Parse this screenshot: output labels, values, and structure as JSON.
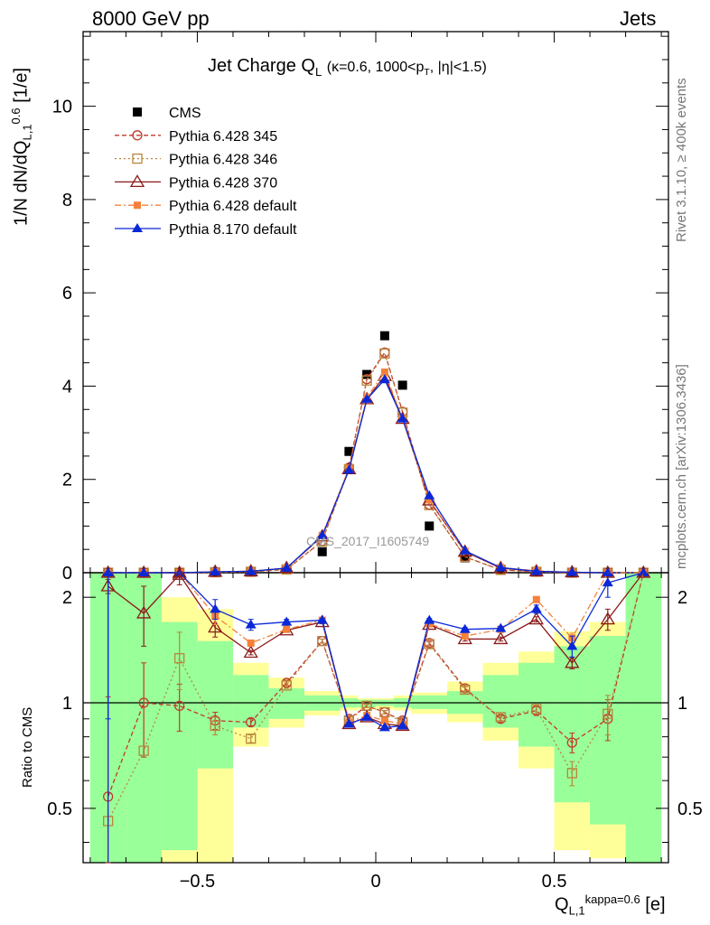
{
  "header": {
    "left": "8000 GeV pp",
    "right": "Jets"
  },
  "side_labels": {
    "rivet": "Rivet 3.1.10, ≥ 400k events",
    "mcplots": "mcplots.cern.ch [arXiv:1306.3436]"
  },
  "watermark": "CMS_2017_I1605749",
  "chart_data": [
    {
      "type": "line",
      "title": "Jet Charge Q_L (κ=0.6, 1000<p_T, |η|<1.5)",
      "ylabel": "1/N dN/dQ_{L,1}^{0.6} [1/e]",
      "xlim": [
        -0.82,
        0.82
      ],
      "ylim": [
        0,
        11.6
      ],
      "y_ticks": [
        0,
        2,
        4,
        6,
        8,
        10
      ],
      "legend_position": "top-left",
      "x": [
        -0.75,
        -0.65,
        -0.55,
        -0.45,
        -0.35,
        -0.25,
        -0.15,
        -0.075,
        -0.025,
        0.025,
        0.075,
        0.15,
        0.25,
        0.35,
        0.45,
        0.55,
        0.65,
        0.75
      ],
      "series": [
        {
          "name": "CMS",
          "color": "#000000",
          "values": [
            0.0,
            0.0,
            0.0,
            0.01,
            0.02,
            0.06,
            0.45,
            2.6,
            4.25,
            5.08,
            4.02,
            1.0,
            0.32,
            0.07,
            0.02,
            0.01,
            0.0,
            0.0
          ]
        },
        {
          "name": "Pythia 6.428 345",
          "color": "#c0392b",
          "values": [
            0.0,
            0.0,
            0.0,
            0.01,
            0.02,
            0.07,
            0.68,
            2.25,
            4.15,
            4.72,
            3.45,
            1.46,
            0.34,
            0.06,
            0.02,
            0.0,
            0.0,
            0.0
          ]
        },
        {
          "name": "Pythia 6.428 346",
          "color": "#b8863b",
          "values": [
            0.0,
            0.0,
            0.0,
            0.01,
            0.02,
            0.07,
            0.67,
            2.22,
            4.12,
            4.7,
            3.43,
            1.45,
            0.34,
            0.06,
            0.02,
            0.0,
            0.0,
            0.0
          ]
        },
        {
          "name": "Pythia 6.428 370",
          "color": "#8b1a1a",
          "values": [
            0.0,
            0.0,
            0.0,
            0.02,
            0.03,
            0.1,
            0.78,
            2.22,
            3.72,
            4.22,
            3.3,
            1.55,
            0.45,
            0.1,
            0.03,
            0.01,
            0.0,
            0.0
          ]
        },
        {
          "name": "Pythia 6.428 default",
          "color": "#f5813b",
          "values": [
            0.0,
            0.0,
            0.0,
            0.02,
            0.03,
            0.1,
            0.8,
            2.24,
            3.76,
            4.3,
            3.3,
            1.56,
            0.46,
            0.11,
            0.04,
            0.01,
            0.0,
            0.0
          ]
        },
        {
          "name": "Pythia 8.170 default",
          "color": "#0a28d8",
          "values": [
            0.0,
            0.0,
            0.0,
            0.02,
            0.03,
            0.1,
            0.8,
            2.2,
            3.72,
            4.14,
            3.3,
            1.65,
            0.47,
            0.11,
            0.03,
            0.01,
            0.0,
            0.0
          ]
        }
      ]
    },
    {
      "type": "line",
      "ylabel": "Ratio to CMS",
      "xlabel": "Q_{L,1}^{kappa=0.6} [e]",
      "xlim": [
        -0.82,
        0.82
      ],
      "ylim": [
        0.35,
        2.35
      ],
      "y_scale": "log",
      "x_ticks": [
        -0.5,
        0,
        0.5
      ],
      "y_ticks": [
        0.5,
        1,
        2
      ],
      "bands": {
        "bins": [
          [
            -0.8,
            -0.7
          ],
          [
            -0.7,
            -0.6
          ],
          [
            -0.6,
            -0.5
          ],
          [
            -0.5,
            -0.4
          ],
          [
            -0.4,
            -0.3
          ],
          [
            -0.3,
            -0.2
          ],
          [
            -0.2,
            -0.1
          ],
          [
            -0.1,
            -0.05
          ],
          [
            -0.05,
            0.0
          ],
          [
            0.0,
            0.05
          ],
          [
            0.05,
            0.1
          ],
          [
            0.1,
            0.2
          ],
          [
            0.2,
            0.3
          ],
          [
            0.3,
            0.4
          ],
          [
            0.4,
            0.5
          ],
          [
            0.5,
            0.6
          ],
          [
            0.6,
            0.7
          ],
          [
            0.7,
            0.8
          ]
        ],
        "green": [
          [
            0.35,
            2.35
          ],
          [
            0.35,
            2.35
          ],
          [
            0.38,
            1.7
          ],
          [
            0.65,
            1.5
          ],
          [
            0.85,
            1.2
          ],
          [
            0.9,
            1.1
          ],
          [
            0.95,
            1.05
          ],
          [
            0.97,
            1.03
          ],
          [
            0.97,
            1.02
          ],
          [
            0.98,
            1.02
          ],
          [
            0.97,
            1.03
          ],
          [
            0.96,
            1.05
          ],
          [
            0.93,
            1.08
          ],
          [
            0.85,
            1.2
          ],
          [
            0.75,
            1.3
          ],
          [
            0.52,
            1.45
          ],
          [
            0.45,
            1.55
          ],
          [
            0.35,
            2.35
          ]
        ],
        "yellow": [
          [
            0.35,
            2.35
          ],
          [
            0.35,
            2.35
          ],
          [
            0.35,
            2.0
          ],
          [
            0.35,
            1.85
          ],
          [
            0.75,
            1.3
          ],
          [
            0.85,
            1.18
          ],
          [
            0.92,
            1.08
          ],
          [
            0.95,
            1.05
          ],
          [
            0.96,
            1.03
          ],
          [
            0.96,
            1.03
          ],
          [
            0.95,
            1.05
          ],
          [
            0.93,
            1.07
          ],
          [
            0.88,
            1.15
          ],
          [
            0.78,
            1.3
          ],
          [
            0.65,
            1.4
          ],
          [
            0.38,
            1.6
          ],
          [
            0.36,
            1.7
          ],
          [
            0.35,
            2.35
          ]
        ]
      },
      "series": [
        {
          "name": "Pythia 6.428 345",
          "values": [
            0.54,
            1.0,
            0.98,
            0.89,
            0.88,
            1.14,
            1.5,
            0.9,
            0.98,
            0.94,
            0.89,
            1.48,
            1.1,
            0.9,
            0.95,
            0.77,
            0.9,
            2.4
          ],
          "errors": [
            0.5,
            0.3,
            0.15,
            0.05,
            0.02,
            0.02,
            0.02,
            0.01,
            0.01,
            0.01,
            0.01,
            0.02,
            0.02,
            0.02,
            0.03,
            0.05,
            0.12,
            0.0
          ]
        },
        {
          "name": "Pythia 6.428 346",
          "values": [
            0.46,
            0.73,
            1.34,
            0.86,
            0.79,
            1.12,
            1.5,
            0.89,
            0.98,
            0.94,
            0.88,
            1.47,
            1.09,
            0.91,
            0.96,
            0.63,
            0.93,
            2.4
          ],
          "errors": [
            0.0,
            0.0,
            0.25,
            0.05,
            0.02,
            0.02,
            0.02,
            0.01,
            0.01,
            0.01,
            0.01,
            0.02,
            0.02,
            0.02,
            0.03,
            0.05,
            0.12,
            0.0
          ]
        },
        {
          "name": "Pythia 6.428 370",
          "values": [
            2.15,
            1.8,
            2.32,
            1.64,
            1.39,
            1.61,
            1.7,
            0.87,
            0.91,
            0.87,
            0.86,
            1.67,
            1.52,
            1.52,
            1.73,
            1.3,
            1.73,
            2.4
          ],
          "errors": [
            0.1,
            0.35,
            0.15,
            0.1,
            0.02,
            0.02,
            0.02,
            0.01,
            0.01,
            0.01,
            0.01,
            0.02,
            0.02,
            0.02,
            0.03,
            0.05,
            0.12,
            0.0
          ]
        },
        {
          "name": "Pythia 6.428 default",
          "values": [
            2.4,
            2.4,
            2.4,
            1.77,
            1.48,
            1.62,
            1.72,
            0.88,
            0.92,
            0.89,
            0.87,
            1.68,
            1.55,
            1.62,
            1.97,
            1.53,
            2.4,
            2.4
          ],
          "errors": [
            0.0,
            0.0,
            0.0,
            0.1,
            0.02,
            0.02,
            0.02,
            0.01,
            0.01,
            0.01,
            0.01,
            0.02,
            0.02,
            0.02,
            0.03,
            0.05,
            0.0,
            0.0
          ]
        },
        {
          "name": "Pythia 8.170 default",
          "values": [
            2.4,
            2.4,
            2.4,
            1.85,
            1.67,
            1.7,
            1.72,
            0.87,
            0.91,
            0.85,
            0.86,
            1.72,
            1.62,
            1.63,
            1.85,
            1.45,
            2.2,
            2.4
          ],
          "errors": [
            1.5,
            0.0,
            0.0,
            0.12,
            0.06,
            0.03,
            0.02,
            0.01,
            0.01,
            0.01,
            0.01,
            0.02,
            0.02,
            0.02,
            0.05,
            0.1,
            0.2,
            0.0
          ]
        }
      ]
    }
  ]
}
